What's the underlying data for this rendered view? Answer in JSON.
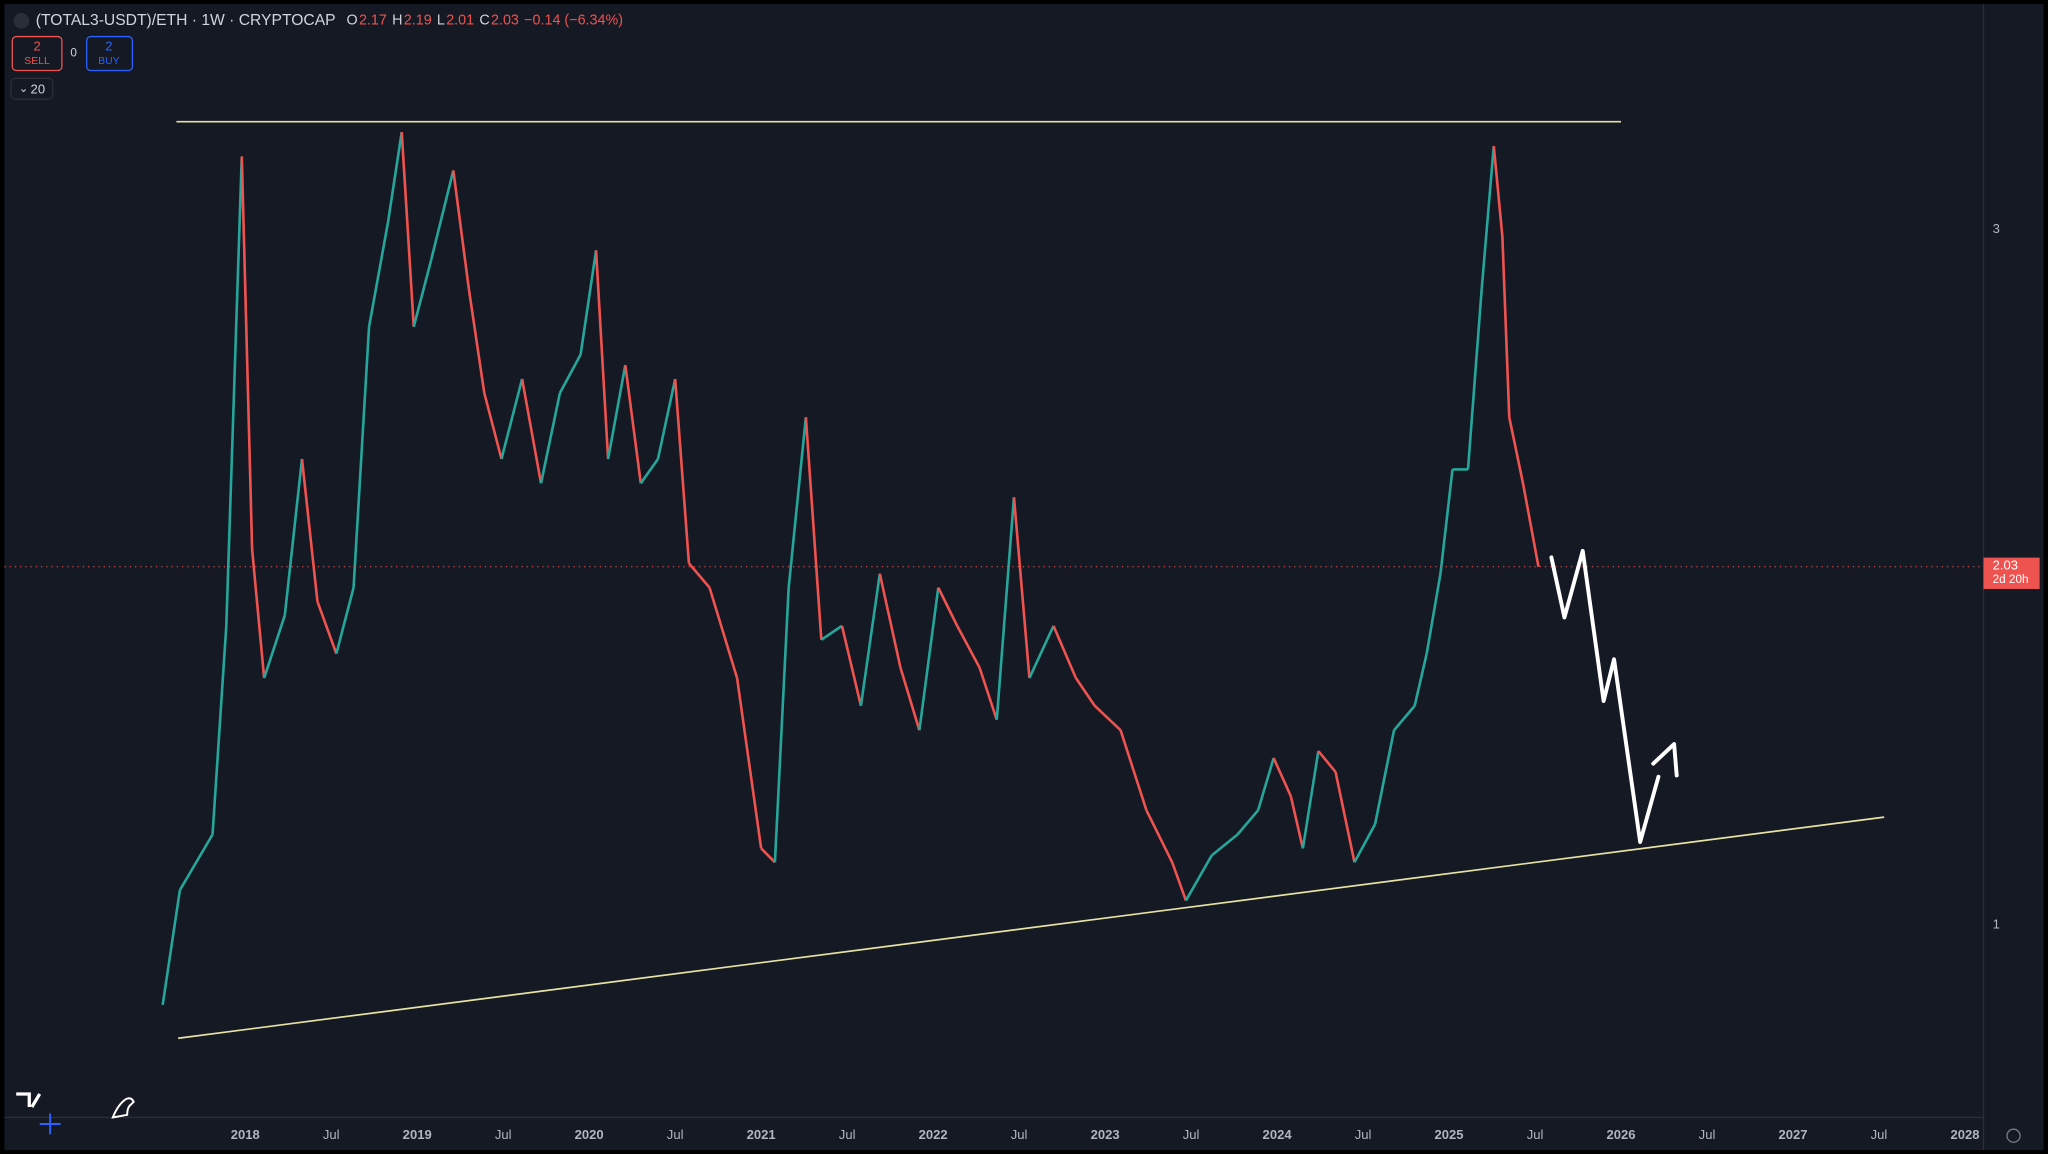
{
  "header": {
    "symbol": "(TOTAL3-USDT)/ETH · 1W · CRYPTOCAP",
    "ohlc": [
      {
        "label": "O",
        "value": "2.17"
      },
      {
        "label": "H",
        "value": "2.19"
      },
      {
        "label": "L",
        "value": "2.01"
      },
      {
        "label": "C",
        "value": "2.03"
      }
    ],
    "change": "−0.14 (−6.34%)"
  },
  "trade": {
    "sell_count": "2",
    "sell": "SELL",
    "spread": "0",
    "buy_count": "2",
    "buy": "BUY"
  },
  "indicators": "20",
  "countdown": "2d 20h",
  "chart_data": {
    "type": "line",
    "log_scale": false,
    "grid": false,
    "up_color": "#26a69a",
    "down_color": "#ef5350",
    "x": [
      2017.52,
      2017.62,
      2017.81,
      2017.89,
      2017.98,
      2018.04,
      2018.11,
      2018.23,
      2018.33,
      2018.42,
      2018.53,
      2018.63,
      2018.72,
      2018.83,
      2018.91,
      2018.98,
      2019.08,
      2019.21,
      2019.3,
      2019.39,
      2019.49,
      2019.61,
      2019.72,
      2019.83,
      2019.95,
      2020.04,
      2020.11,
      2020.21,
      2020.3,
      2020.4,
      2020.5,
      2020.58,
      2020.7,
      2020.86,
      2021.0,
      2021.08,
      2021.16,
      2021.26,
      2021.35,
      2021.47,
      2021.58,
      2021.69,
      2021.81,
      2021.92,
      2022.03,
      2022.14,
      2022.27,
      2022.37,
      2022.47,
      2022.56,
      2022.7,
      2022.83,
      2022.94,
      2023.09,
      2023.24,
      2023.39,
      2023.47,
      2023.62,
      2023.77,
      2023.89,
      2023.98,
      2024.08,
      2024.15,
      2024.24,
      2024.34,
      2024.45,
      2024.57,
      2024.68,
      2024.8,
      2024.87,
      2024.95,
      2025.02,
      2025.11,
      2025.19,
      2025.26,
      2025.31,
      2025.35,
      2025.43,
      2025.52
    ],
    "values": [
      0.77,
      1.1,
      1.26,
      1.86,
      3.21,
      2.08,
      1.71,
      1.89,
      2.34,
      1.93,
      1.78,
      1.97,
      2.72,
      3.02,
      3.28,
      2.72,
      2.91,
      3.17,
      2.83,
      2.53,
      2.34,
      2.57,
      2.27,
      2.53,
      2.64,
      2.94,
      2.34,
      2.61,
      2.27,
      2.34,
      2.57,
      2.04,
      1.97,
      1.71,
      1.22,
      1.18,
      1.97,
      2.46,
      1.82,
      1.86,
      1.63,
      2.01,
      1.74,
      1.56,
      1.97,
      1.86,
      1.74,
      1.59,
      2.23,
      1.71,
      1.86,
      1.71,
      1.63,
      1.56,
      1.33,
      1.18,
      1.07,
      1.2,
      1.26,
      1.33,
      1.48,
      1.37,
      1.22,
      1.5,
      1.44,
      1.18,
      1.29,
      1.56,
      1.63,
      1.78,
      2.01,
      2.31,
      2.31,
      2.83,
      3.24,
      2.98,
      2.46,
      2.27,
      2.03
    ],
    "lines": [
      {
        "color": "#e6e2a3",
        "x": [
          2017.6,
          2026.0
        ],
        "y": [
          3.31,
          3.31
        ]
      },
      {
        "color": "#e6e2a3",
        "x": [
          2017.61,
          2027.53
        ],
        "y": [
          0.674,
          1.31
        ]
      }
    ],
    "xlim": [
      2016.6,
      2028.1
    ],
    "ylim": [
      0.45,
      3.66
    ],
    "yticks": [
      1,
      3
    ],
    "xticks": [
      2018,
      {
        "value": 2018.5,
        "label": "Jul"
      },
      2019,
      {
        "value": 2019.5,
        "label": "Jul"
      },
      2020,
      {
        "value": 2020.5,
        "label": "Jul"
      },
      2021,
      {
        "value": 2021.5,
        "label": "Jul"
      },
      2022,
      {
        "value": 2022.5,
        "label": "Jul"
      },
      2023,
      {
        "value": 2023.5,
        "label": "Jul"
      },
      2024,
      {
        "value": 2024.5,
        "label": "Jul"
      },
      2025,
      {
        "value": 2025.5,
        "label": "Jul"
      },
      2026,
      {
        "value": 2026.5,
        "label": "Jul"
      },
      2027,
      {
        "value": 2027.5,
        "label": "Jul"
      },
      2028
    ]
  }
}
